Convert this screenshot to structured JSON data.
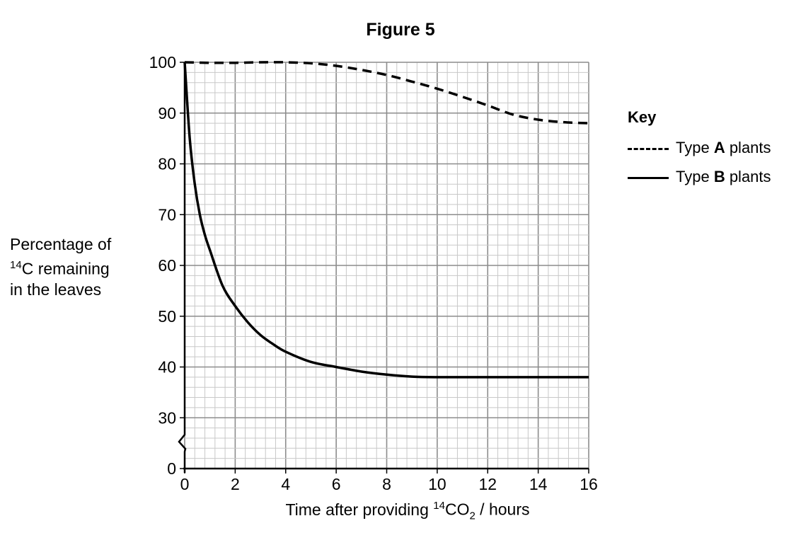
{
  "chart_data": {
    "type": "line",
    "title": "Figure 5",
    "xlabel": {
      "pre": "Time after providing ",
      "sup": "14",
      "mid": "CO",
      "sub": "2",
      "post": " / hours"
    },
    "ylabel": {
      "line1": "Percentage of",
      "sup": "14",
      "line2": "C remaining",
      "line3": "in the leaves"
    },
    "xlim": [
      0,
      16
    ],
    "ylim": [
      0,
      100
    ],
    "y_axis_break": [
      0,
      30
    ],
    "x_ticks": [
      "0",
      "2",
      "4",
      "6",
      "8",
      "10",
      "12",
      "14",
      "16"
    ],
    "y_ticks": [
      "0",
      "30",
      "40",
      "50",
      "60",
      "70",
      "80",
      "90",
      "100"
    ],
    "grid": true,
    "legend": {
      "title": "Key",
      "placement": "right",
      "entries": [
        {
          "pre": "Type ",
          "bold": "A",
          "post": " plants",
          "style": "dashed"
        },
        {
          "pre": "Type ",
          "bold": "B",
          "post": " plants",
          "style": "solid"
        }
      ]
    },
    "series": [
      {
        "name": "Type A plants",
        "style": "dashed",
        "x": [
          0,
          1,
          2,
          3,
          4,
          5,
          6,
          7,
          8,
          9,
          10,
          11,
          12,
          13,
          14,
          15,
          16
        ],
        "y": [
          100,
          99.9,
          99.9,
          100,
          100,
          99.8,
          99.3,
          98.5,
          97.5,
          96.2,
          94.8,
          93.2,
          91.5,
          89.7,
          88.7,
          88.2,
          88
        ]
      },
      {
        "name": "Type B plants",
        "style": "solid",
        "x": [
          0,
          0.2,
          0.4,
          0.6,
          0.8,
          1,
          1.5,
          2,
          2.5,
          3,
          3.5,
          4,
          5,
          6,
          7,
          8,
          9,
          10,
          12,
          14,
          16
        ],
        "y": [
          100,
          85,
          76,
          70,
          66,
          63,
          56,
          52,
          48.8,
          46.3,
          44.5,
          43,
          41,
          40,
          39.1,
          38.5,
          38.1,
          38,
          38,
          38,
          38
        ]
      }
    ],
    "colors": {
      "line": "#000000",
      "grid_major": "#8c8c8c",
      "grid_minor": "#c8c8c8"
    }
  }
}
